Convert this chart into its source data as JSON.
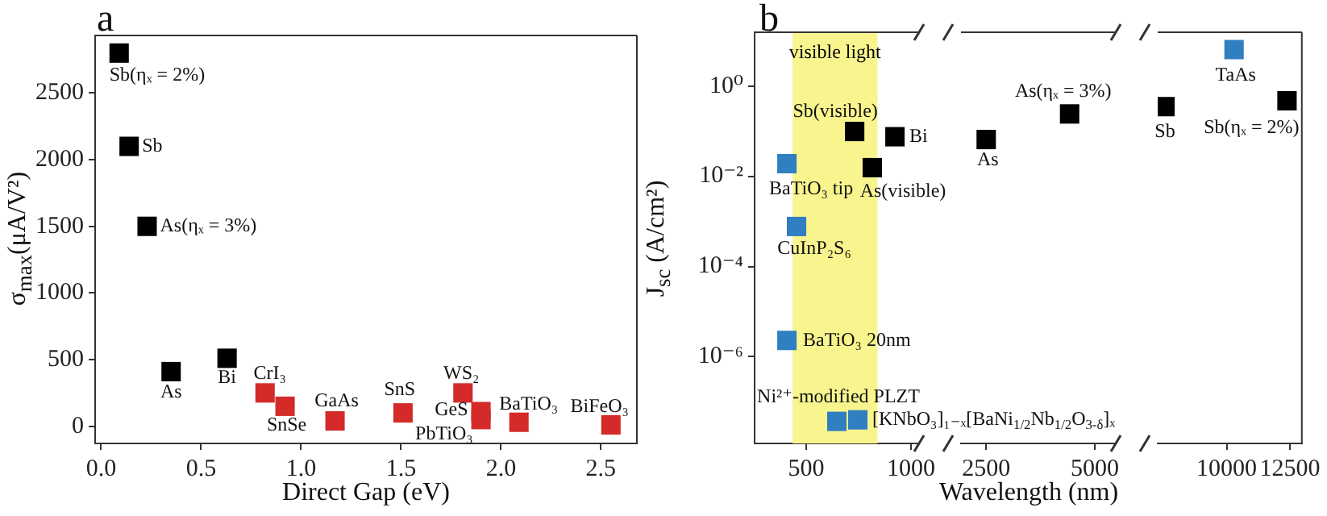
{
  "chart_data": [
    {
      "type": "scatter",
      "title": "a",
      "xlabel": "Direct Gap (eV)",
      "ylabel": "σ$_{max}$(μA/V²)",
      "marker": "square",
      "xlim": [
        -0.03,
        2.68
      ],
      "xticks": [
        {
          "value": 0,
          "label": "0.0"
        },
        {
          "value": 0.5,
          "label": "0.5"
        },
        {
          "value": 1,
          "label": "1.0"
        },
        {
          "value": 1.5,
          "label": "1.5"
        },
        {
          "value": 2,
          "label": "2.0"
        },
        {
          "value": 2.5,
          "label": "2.5"
        }
      ],
      "ylim": [
        -129,
        2932
      ],
      "yticks": [
        0,
        500,
        1000,
        1500,
        2000,
        2500
      ],
      "series": [
        {
          "color": "#000000",
          "x": [
            0.09,
            0.14,
            0.23,
            0.35,
            0.63
          ],
          "values": [
            2800,
            2100,
            1500,
            410,
            510
          ]
        },
        {
          "color": "#d42a2a",
          "x": [
            0.82,
            0.92,
            1.17,
            1.51,
            1.81,
            1.9,
            1.9,
            2.09,
            2.55
          ],
          "values": [
            250,
            150,
            40,
            100,
            250,
            110,
            50,
            30,
            10
          ]
        }
      ],
      "annotations": [
        {
          "text": "Sb(ηₓ = 2%)",
          "x": 0.09,
          "y": 2800
        },
        {
          "text": "Sb",
          "x": 0.14,
          "y": 2100
        },
        {
          "text": "As(ηₓ = 3%)",
          "x": 0.23,
          "y": 1500
        },
        {
          "text": "As",
          "x": 0.35,
          "y": 410
        },
        {
          "text": "Bi",
          "x": 0.63,
          "y": 510
        },
        {
          "text": "CrI₃",
          "x": 0.82,
          "y": 250
        },
        {
          "text": "SnSe",
          "x": 0.92,
          "y": 150
        },
        {
          "text": "GaAs",
          "x": 1.17,
          "y": 40
        },
        {
          "text": "SnS",
          "x": 1.51,
          "y": 100
        },
        {
          "text": "WS₂",
          "x": 1.81,
          "y": 250
        },
        {
          "text": "GeS",
          "x": 1.9,
          "y": 110
        },
        {
          "text": "PbTiO₃",
          "x": 1.9,
          "y": 50
        },
        {
          "text": "BaTiO₃",
          "x": 2.09,
          "y": 30
        },
        {
          "text": "BiFeO₃",
          "x": 2.55,
          "y": 10
        }
      ]
    },
    {
      "type": "scatter",
      "title": "b",
      "ylabel": "J$_{sc}$ (A/cm²)",
      "marker": "square",
      "log": "y",
      "xlim": [
        254,
        1038
      ],
      "xticks": [
        500,
        1000
      ],
      "ylim": [
        1.2e-08,
        15.5
      ],
      "yticks": [
        {
          "value": 1,
          "label": "10⁰"
        },
        {
          "value": 0.01,
          "label": "10⁻²"
        },
        {
          "value": 0.0001,
          "label": "10⁻⁴"
        },
        {
          "value": 1e-06,
          "label": "10⁻⁶"
        }
      ],
      "bands": [
        {
          "axis": "x",
          "from": 435,
          "to": 840,
          "label": "visible light",
          "color": "#f9f58e"
        }
      ],
      "series": [
        {
          "color": "#2f7fc1",
          "x": [
            408,
            454,
            408,
            646,
            746
          ],
          "values": [
            0.019,
            0.00077,
            2.3e-06,
            3.7e-08,
            4e-08
          ]
        },
        {
          "color": "#000000",
          "x": [
            731,
            815,
            923
          ],
          "values": [
            0.098,
            0.0155,
            0.075
          ]
        }
      ],
      "annotations": [
        {
          "text": "BaTiO₃ tip",
          "x": 408,
          "y": 0.019
        },
        {
          "text": "CuInP₂S₆",
          "x": 454,
          "y": 0.00077
        },
        {
          "text": "BaTiO₃ 20nm",
          "x": 408,
          "y": 2.3e-06
        },
        {
          "text": "Ni²⁺-modified PLZT",
          "x": 646,
          "y": 3.7e-08
        },
        {
          "text": "[KNbO₃]₁₋ₓ[BaNi$_{1/2}$Nb$_{1/2}$O$_{3-δ}$]ₓ",
          "x": 746,
          "y": 4e-08
        },
        {
          "text": "Sb(visible)",
          "x": 731,
          "y": 0.098
        },
        {
          "text": "As(visible)",
          "x": 815,
          "y": 0.0155
        },
        {
          "text": "Bi",
          "x": 923,
          "y": 0.075
        }
      ]
    },
    {
      "type": "scatter",
      "xlabel": "Wavelength (nm)",
      "marker": "square",
      "log": "y",
      "tick_labels": "x",
      "xlim": [
        1920,
        5480
      ],
      "xticks": [
        2500,
        5000
      ],
      "ylim": [
        1.2e-08,
        15.5
      ],
      "series": [
        {
          "color": "#000000",
          "x": [
            2500,
            4418
          ],
          "values": [
            0.065,
            0.24
          ]
        }
      ],
      "annotations": [
        {
          "text": "As",
          "x": 2500,
          "y": 0.065
        },
        {
          "text": "As(ηₓ = 3%)",
          "x": 4418,
          "y": 0.24
        }
      ]
    },
    {
      "type": "scatter",
      "marker": "square",
      "log": "y",
      "tick_labels": "x",
      "xlim": [
        7270,
        12970
      ],
      "xticks": [
        10000,
        12500
      ],
      "ylim": [
        1.2e-08,
        15.5
      ],
      "series": [
        {
          "color": "#2f7fc1",
          "x": [
            10290
          ],
          "values": [
            6.4
          ]
        },
        {
          "color": "#000000",
          "x": [
            7558,
            12384
          ],
          "values": [
            0.35,
            0.47
          ]
        }
      ],
      "annotations": [
        {
          "text": "TaAs",
          "x": 10290,
          "y": 6.4
        },
        {
          "text": "Sb",
          "x": 7558,
          "y": 0.35
        },
        {
          "text": "Sb(ηₓ = 2%)",
          "x": 12384,
          "y": 0.47
        }
      ]
    }
  ]
}
